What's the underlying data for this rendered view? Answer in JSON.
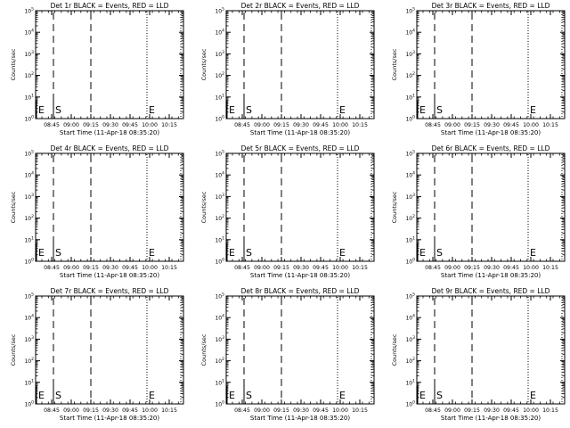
{
  "chart_data": [
    {
      "type": "line",
      "title": "Det 1r BLACK = Events, RED = LLD",
      "xlabel": "Start Time (11-Apr-18 08:35:20)",
      "ylabel": "Counts/sec",
      "y_scale": "log",
      "ylim": [
        1,
        100000
      ],
      "y_ticks": [
        "10^0",
        "10^1",
        "10^2",
        "10^3",
        "10^4",
        "10^5"
      ],
      "x_ticks": [
        "08:45",
        "09:00",
        "09:15",
        "09:30",
        "09:45",
        "10:00",
        "10:15"
      ],
      "markers": [
        "E",
        "S",
        "E"
      ],
      "series": []
    },
    {
      "type": "line",
      "title": "Det 2r BLACK = Events, RED = LLD",
      "xlabel": "Start Time (11-Apr-18 08:35:20)",
      "ylabel": "Counts/sec",
      "y_scale": "log",
      "ylim": [
        1,
        100000
      ],
      "y_ticks": [
        "10^0",
        "10^1",
        "10^2",
        "10^3",
        "10^4",
        "10^5"
      ],
      "x_ticks": [
        "08:45",
        "09:00",
        "09:15",
        "09:30",
        "09:45",
        "10:00",
        "10:15"
      ],
      "markers": [
        "E",
        "S",
        "E"
      ],
      "series": []
    },
    {
      "type": "line",
      "title": "Det 3r BLACK = Events, RED = LLD",
      "xlabel": "Start Time (11-Apr-18 08:35:20)",
      "ylabel": "Counts/sec",
      "y_scale": "log",
      "ylim": [
        1,
        100000
      ],
      "y_ticks": [
        "10^0",
        "10^1",
        "10^2",
        "10^3",
        "10^4",
        "10^5"
      ],
      "x_ticks": [
        "08:45",
        "09:00",
        "09:15",
        "09:30",
        "09:45",
        "10:00",
        "10:15"
      ],
      "markers": [
        "E",
        "S",
        "E"
      ],
      "series": []
    },
    {
      "type": "line",
      "title": "Det 4r BLACK = Events, RED = LLD",
      "xlabel": "Start Time (11-Apr-18 08:35:20)",
      "ylabel": "Counts/sec",
      "y_scale": "log",
      "ylim": [
        1,
        100000
      ],
      "y_ticks": [
        "10^0",
        "10^1",
        "10^2",
        "10^3",
        "10^4",
        "10^5"
      ],
      "x_ticks": [
        "08:45",
        "09:00",
        "09:15",
        "09:30",
        "09:45",
        "10:00",
        "10:15"
      ],
      "markers": [
        "E",
        "S",
        "E"
      ],
      "series": []
    },
    {
      "type": "line",
      "title": "Det 5r BLACK = Events, RED = LLD",
      "xlabel": "Start Time (11-Apr-18 08:35:20)",
      "ylabel": "Counts/sec",
      "y_scale": "log",
      "ylim": [
        1,
        100000
      ],
      "y_ticks": [
        "10^0",
        "10^1",
        "10^2",
        "10^3",
        "10^4",
        "10^5"
      ],
      "x_ticks": [
        "08:45",
        "09:00",
        "09:15",
        "09:30",
        "09:45",
        "10:00",
        "10:15"
      ],
      "markers": [
        "E",
        "S",
        "E"
      ],
      "series": []
    },
    {
      "type": "line",
      "title": "Det 6r BLACK = Events, RED = LLD",
      "xlabel": "Start Time (11-Apr-18 08:35:20)",
      "ylabel": "Counts/sec",
      "y_scale": "log",
      "ylim": [
        1,
        100000
      ],
      "y_ticks": [
        "10^0",
        "10^1",
        "10^2",
        "10^3",
        "10^4",
        "10^5"
      ],
      "x_ticks": [
        "08:45",
        "09:00",
        "09:15",
        "09:30",
        "09:45",
        "10:00",
        "10:15"
      ],
      "markers": [
        "E",
        "S",
        "E"
      ],
      "series": []
    },
    {
      "type": "line",
      "title": "Det 7r BLACK = Events, RED = LLD",
      "xlabel": "Start Time (11-Apr-18 08:35:20)",
      "ylabel": "Counts/sec",
      "y_scale": "log",
      "ylim": [
        1,
        100000
      ],
      "y_ticks": [
        "10^0",
        "10^1",
        "10^2",
        "10^3",
        "10^4",
        "10^5"
      ],
      "x_ticks": [
        "08:45",
        "09:00",
        "09:15",
        "09:30",
        "09:45",
        "10:00",
        "10:15"
      ],
      "markers": [
        "E",
        "S",
        "E"
      ],
      "series": []
    },
    {
      "type": "line",
      "title": "Det 8r BLACK = Events, RED = LLD",
      "xlabel": "Start Time (11-Apr-18 08:35:20)",
      "ylabel": "Counts/sec",
      "y_scale": "log",
      "ylim": [
        1,
        100000
      ],
      "y_ticks": [
        "10^0",
        "10^1",
        "10^2",
        "10^3",
        "10^4",
        "10^5"
      ],
      "x_ticks": [
        "08:45",
        "09:00",
        "09:15",
        "09:30",
        "09:45",
        "10:00",
        "10:15"
      ],
      "markers": [
        "E",
        "S",
        "E"
      ],
      "series": []
    },
    {
      "type": "line",
      "title": "Det 9r BLACK = Events, RED = LLD",
      "xlabel": "Start Time (11-Apr-18 08:35:20)",
      "ylabel": "Counts/sec",
      "y_scale": "log",
      "ylim": [
        1,
        100000
      ],
      "y_ticks": [
        "10^0",
        "10^1",
        "10^2",
        "10^3",
        "10^4",
        "10^5"
      ],
      "x_ticks": [
        "08:45",
        "09:00",
        "09:15",
        "09:30",
        "09:45",
        "10:00",
        "10:15"
      ],
      "markers": [
        "E",
        "S",
        "E"
      ],
      "series": []
    }
  ],
  "colors": {
    "background": "#ffffff",
    "axes": "#000000",
    "events": "#000000",
    "lld": "#ff0000"
  }
}
